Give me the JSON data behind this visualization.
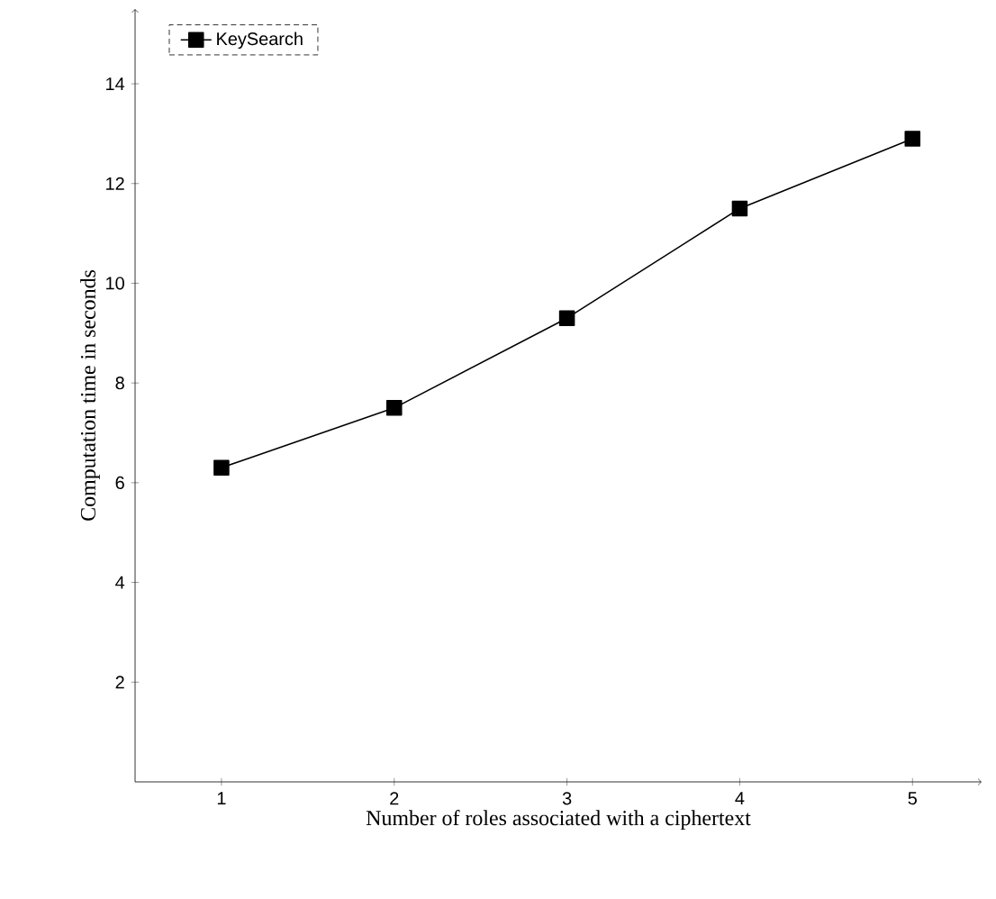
{
  "chart_data": {
    "type": "line",
    "xlabel": "Number of roles associated with a ciphertext",
    "ylabel": "Computation time in seconds",
    "x": [
      1,
      2,
      3,
      4,
      5
    ],
    "series": [
      {
        "name": "KeySearch",
        "color": "#000000",
        "values": [
          6.3,
          7.5,
          9.3,
          11.5,
          12.9
        ]
      }
    ],
    "xlim": [
      0.5,
      5.4
    ],
    "ylim": [
      0,
      15.5
    ],
    "xticks": [
      1,
      2,
      3,
      4,
      5
    ],
    "yticks": [
      2,
      4,
      6,
      8,
      10,
      12,
      14
    ],
    "grid": false,
    "legend": "top left",
    "marker": "square",
    "line_style": "solid"
  }
}
